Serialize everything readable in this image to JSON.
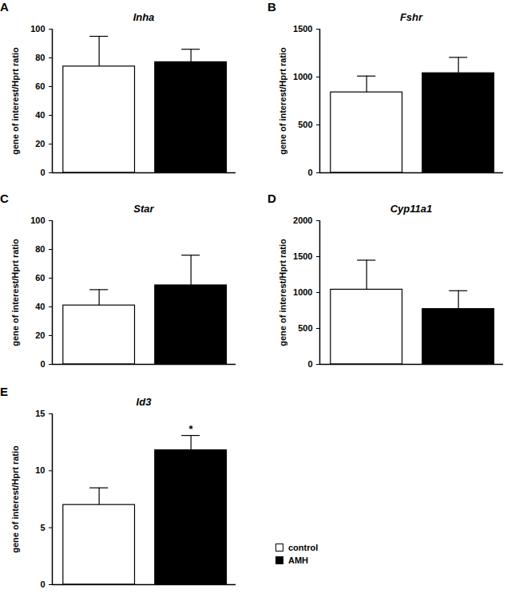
{
  "chart_data": [
    {
      "type": "bar",
      "panel": "A",
      "title": "Inha",
      "y_label": "gene of interest/Hprt ratio",
      "categories": [
        null
      ],
      "series": [
        {
          "name": "control",
          "color": "#ffffff",
          "values": [
            74
          ],
          "errors": [
            21
          ]
        },
        {
          "name": "AMH",
          "color": "#000000",
          "values": [
            77
          ],
          "errors": [
            9
          ]
        }
      ],
      "ylim": [
        0,
        100
      ],
      "yticks": [
        0,
        20,
        40,
        60,
        80,
        100
      ],
      "grid": false
    },
    {
      "type": "bar",
      "panel": "B",
      "title": "Fshr",
      "y_label": "gene of interest/Hprt ratio",
      "categories": [
        null
      ],
      "series": [
        {
          "name": "control",
          "color": "#ffffff",
          "values": [
            840
          ],
          "errors": [
            170
          ]
        },
        {
          "name": "AMH",
          "color": "#000000",
          "values": [
            1040
          ],
          "errors": [
            165
          ]
        }
      ],
      "ylim": [
        0,
        1500
      ],
      "yticks": [
        0,
        500,
        1000,
        1500
      ],
      "grid": false
    },
    {
      "type": "bar",
      "panel": "C",
      "title": "Star",
      "y_label": "gene of interest/Hprt ratio",
      "categories": [
        null
      ],
      "series": [
        {
          "name": "control",
          "color": "#ffffff",
          "values": [
            41
          ],
          "errors": [
            11
          ]
        },
        {
          "name": "AMH",
          "color": "#000000",
          "values": [
            55
          ],
          "errors": [
            21
          ]
        }
      ],
      "ylim": [
        0,
        100
      ],
      "yticks": [
        0,
        20,
        40,
        60,
        80,
        100
      ],
      "grid": false
    },
    {
      "type": "bar",
      "panel": "D",
      "title": "Cyp11a1",
      "y_label": "gene of interest/Hprt ratio",
      "categories": [
        null
      ],
      "series": [
        {
          "name": "control",
          "color": "#ffffff",
          "values": [
            1040
          ],
          "errors": [
            410
          ]
        },
        {
          "name": "AMH",
          "color": "#000000",
          "values": [
            770
          ],
          "errors": [
            255
          ]
        }
      ],
      "ylim": [
        0,
        2000
      ],
      "yticks": [
        0,
        500,
        1000,
        1500,
        2000
      ],
      "grid": false
    },
    {
      "type": "bar",
      "panel": "E",
      "title": "Id3",
      "y_label": "gene of interest/Hprt ratio",
      "categories": [
        null
      ],
      "series": [
        {
          "name": "control",
          "color": "#ffffff",
          "values": [
            7.0
          ],
          "errors": [
            1.5
          ]
        },
        {
          "name": "AMH",
          "color": "#000000",
          "values": [
            11.8
          ],
          "errors": [
            1.3
          ]
        }
      ],
      "ylim": [
        0,
        15
      ],
      "yticks": [
        0,
        5,
        10,
        15
      ],
      "grid": false,
      "annotations": [
        {
          "text": "*",
          "series": "AMH",
          "category_index": 0
        }
      ],
      "legend": "right"
    }
  ]
}
